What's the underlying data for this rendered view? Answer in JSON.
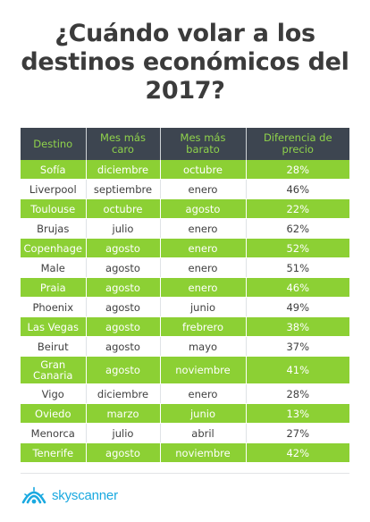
{
  "title": {
    "line1": "¿Cuándo volar a los",
    "line2": "destinos económicos del",
    "line3": "2017?"
  },
  "table": {
    "headers": {
      "col1": "Destino",
      "col2_l1": "Mes más",
      "col2_l2": "caro",
      "col3_l1": "Mes más",
      "col3_l2": "barato",
      "col4_l1": "Diferencia de",
      "col4_l2": "precio"
    },
    "rows": [
      [
        "Sofía",
        "diciembre",
        "octubre",
        "28%"
      ],
      [
        "Liverpool",
        "septiembre",
        "enero",
        "46%"
      ],
      [
        "Toulouse",
        "octubre",
        "agosto",
        "22%"
      ],
      [
        "Brujas",
        "julio",
        "enero",
        "62%"
      ],
      [
        "Copenhage",
        "agosto",
        "enero",
        "52%"
      ],
      [
        "Male",
        "agosto",
        "enero",
        "51%"
      ],
      [
        "Praia",
        "agosto",
        "enero",
        "46%"
      ],
      [
        "Phoenix",
        "agosto",
        "junio",
        "49%"
      ],
      [
        "Las Vegas",
        "agosto",
        "frebrero",
        "38%"
      ],
      [
        "Beirut",
        "agosto",
        "mayo",
        "37%"
      ],
      [
        "Gran Canaria",
        "agosto",
        "noviembre",
        "41%"
      ],
      [
        "Vigo",
        "diciembre",
        "enero",
        "28%"
      ],
      [
        "Oviedo",
        "marzo",
        "junio",
        "13%"
      ],
      [
        "Menorca",
        "julio",
        "abril",
        "27%"
      ],
      [
        "Tenerife",
        "agosto",
        "noviembre",
        "42%"
      ]
    ]
  },
  "logo": {
    "text": "skyscanner",
    "icon": "skyscanner-cloud-icon"
  },
  "colors": {
    "green": "#8cd034",
    "header_bg": "#3d4550",
    "header_text": "#8fd24b",
    "logo_blue": "#1aa9e0"
  }
}
